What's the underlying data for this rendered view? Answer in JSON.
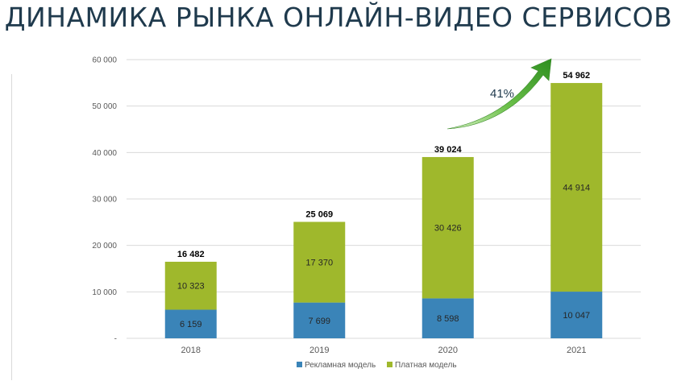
{
  "page": {
    "title": "ДИНАМИКА РЫНКА ОНЛАЙН-ВИДЕО СЕРВИСОВ"
  },
  "colors": {
    "ad_model": "#3a84b8",
    "paid_model": "#9fb82c",
    "gridline": "#d9d9d9",
    "arrow": "#3fa526"
  },
  "chart_data": {
    "type": "bar",
    "stacked": true,
    "categories": [
      "2018",
      "2019",
      "2020",
      "2021"
    ],
    "series": [
      {
        "name": "Рекламная модель",
        "values": [
          6159,
          7699,
          8598,
          10047
        ]
      },
      {
        "name": "Платная модель",
        "values": [
          10323,
          17370,
          30426,
          44914
        ]
      }
    ],
    "segment_labels": [
      [
        "6 159",
        "7 699",
        "8 598",
        "10 047"
      ],
      [
        "10 323",
        "17 370",
        "30 426",
        "44 914"
      ]
    ],
    "totals": [
      16482,
      25069,
      39024,
      54962
    ],
    "total_labels": [
      "16 482",
      "25 069",
      "39 024",
      "54 962"
    ],
    "ylim": [
      0,
      60000
    ],
    "yticks": [
      0,
      10000,
      20000,
      30000,
      40000,
      50000,
      60000
    ],
    "ytick_labels": [
      "-",
      "10 000",
      "20 000",
      "30 000",
      "40 000",
      "50 000",
      "60 000"
    ],
    "grid": true,
    "legend_position": "bottom",
    "annotation": {
      "text": "41%",
      "icon": "growth-arrow-icon"
    }
  }
}
